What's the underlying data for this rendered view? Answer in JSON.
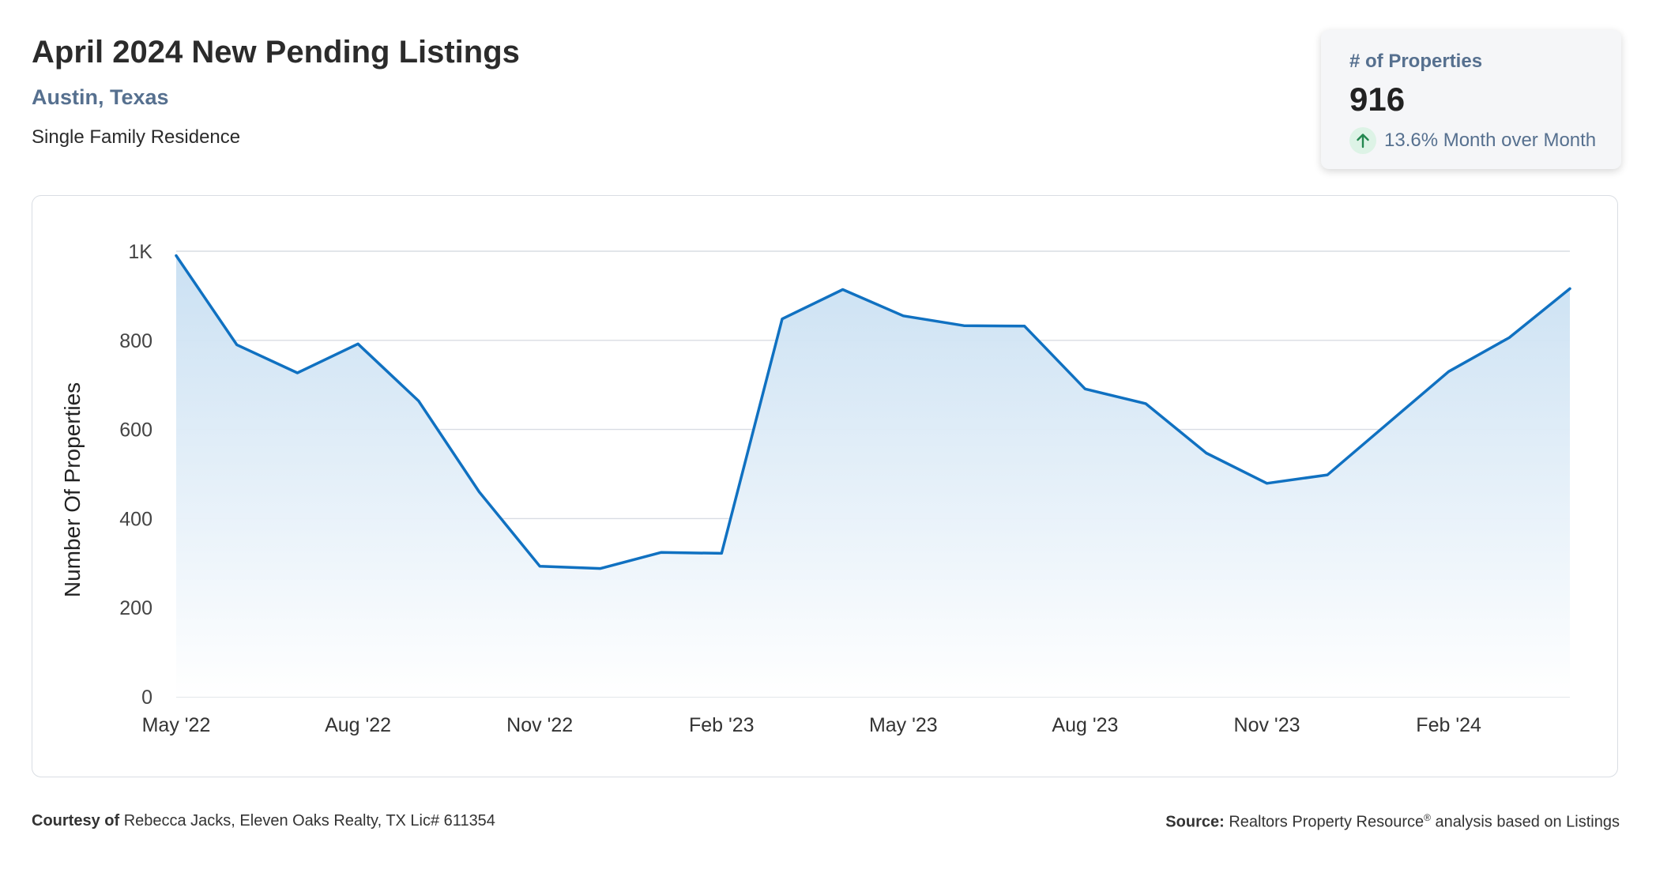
{
  "header": {
    "title": "April 2024 New Pending Listings",
    "location": "Austin, Texas",
    "property_type": "Single Family Residence"
  },
  "stat_card": {
    "label": "# of Properties",
    "value": "916",
    "change_text": "13.6% Month over Month",
    "change_direction": "up",
    "icon": "arrow-up-icon"
  },
  "footer": {
    "courtesy_label": "Courtesy of",
    "courtesy_text": "Rebecca Jacks, Eleven Oaks Realty, TX Lic# 611354",
    "source_label": "Source:",
    "source_text_a": "Realtors Property Resource",
    "source_sup": "®",
    "source_text_b": "analysis based on Listings"
  },
  "colors": {
    "line": "#1071c1",
    "area_top": "#c8dff2",
    "area_bottom": "#ffffff",
    "grid": "#d9dde3",
    "accent_label": "#56708f",
    "up_icon_bg": "#ddf3e6",
    "up_icon": "#23874f"
  },
  "chart_data": {
    "type": "area",
    "ylabel": "Number Of Properties",
    "xlabel": "",
    "ylim": [
      0,
      1000
    ],
    "y_ticks": [
      0,
      200,
      400,
      600,
      800,
      1000
    ],
    "y_tick_labels": [
      "0",
      "200",
      "400",
      "600",
      "800",
      "1K"
    ],
    "x": [
      "2022-05",
      "2022-06",
      "2022-07",
      "2022-08",
      "2022-09",
      "2022-10",
      "2022-11",
      "2022-12",
      "2023-01",
      "2023-02",
      "2023-03",
      "2023-04",
      "2023-05",
      "2023-06",
      "2023-07",
      "2023-08",
      "2023-09",
      "2023-10",
      "2023-11",
      "2023-12",
      "2024-01",
      "2024-02",
      "2024-03",
      "2024-04"
    ],
    "x_tick_labels": [
      "May '22",
      "Aug '22",
      "Nov '22",
      "Feb '23",
      "May '23",
      "Aug '23",
      "Nov '23",
      "Feb '24"
    ],
    "x_tick_months": [
      "2022-05",
      "2022-08",
      "2022-11",
      "2023-02",
      "2023-05",
      "2023-08",
      "2023-11",
      "2024-02"
    ],
    "values": [
      990,
      790,
      727,
      792,
      664,
      460,
      293,
      288,
      324,
      322,
      848,
      914,
      855,
      833,
      832,
      691,
      658,
      547,
      479,
      498,
      614,
      730,
      806,
      916
    ],
    "grid": true,
    "legend": "none"
  }
}
